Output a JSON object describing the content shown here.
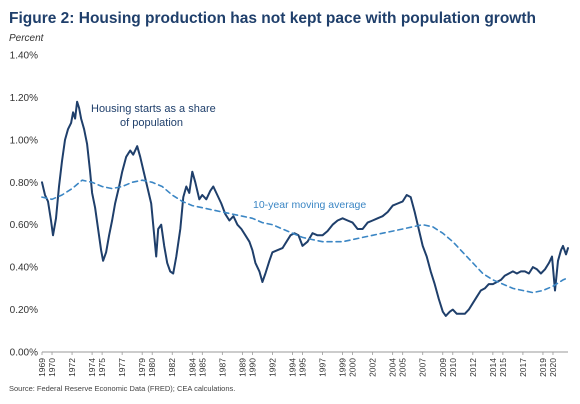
{
  "header": {
    "title": "Figure 2: Housing production has not kept pace with population growth",
    "subtitle": "Percent"
  },
  "footer": {
    "source": "Source: Federal Reserve Economic Data (FRED); CEA calculations."
  },
  "colors": {
    "series_main": "#1f3f6b",
    "series_avg": "#3b86c4",
    "axis": "#999999"
  },
  "chart_data": {
    "type": "line",
    "title": "Figure 2: Housing production has not kept pace with population growth",
    "ylabel": "Percent",
    "xlabel": "",
    "ylim": [
      0,
      1.4
    ],
    "xlim": [
      1969,
      2021.5
    ],
    "grid": false,
    "y_ticks": [
      "0.00%",
      "0.20%",
      "0.40%",
      "0.60%",
      "0.80%",
      "1.00%",
      "1.20%",
      "1.40%"
    ],
    "x_ticks": [
      "1969",
      "1970",
      "1972",
      "1974",
      "1975",
      "1977",
      "1979",
      "1980",
      "1982",
      "1984",
      "1985",
      "1987",
      "1989",
      "1990",
      "1992",
      "1994",
      "1995",
      "1997",
      "1999",
      "2000",
      "2002",
      "2004",
      "2005",
      "2007",
      "2009",
      "2010",
      "2012",
      "2014",
      "2015",
      "2017",
      "2019",
      "2020"
    ],
    "annotations": [
      {
        "text_lines": [
          "Housing starts as a share",
          "of population"
        ],
        "series": "starts"
      },
      {
        "text_lines": [
          "10-year moving average"
        ],
        "series": "avg"
      }
    ],
    "series": [
      {
        "id": "starts",
        "style": "solid",
        "points": [
          [
            1969.0,
            0.8
          ],
          [
            1969.3,
            0.74
          ],
          [
            1969.6,
            0.71
          ],
          [
            1969.9,
            0.62
          ],
          [
            1970.1,
            0.55
          ],
          [
            1970.4,
            0.63
          ],
          [
            1970.7,
            0.78
          ],
          [
            1971.0,
            0.9
          ],
          [
            1971.3,
            1.0
          ],
          [
            1971.6,
            1.05
          ],
          [
            1971.9,
            1.08
          ],
          [
            1972.1,
            1.13
          ],
          [
            1972.3,
            1.1
          ],
          [
            1972.5,
            1.18
          ],
          [
            1972.7,
            1.15
          ],
          [
            1972.9,
            1.1
          ],
          [
            1973.2,
            1.05
          ],
          [
            1973.5,
            0.98
          ],
          [
            1973.8,
            0.85
          ],
          [
            1974.0,
            0.75
          ],
          [
            1974.3,
            0.68
          ],
          [
            1974.6,
            0.58
          ],
          [
            1974.9,
            0.48
          ],
          [
            1975.1,
            0.43
          ],
          [
            1975.4,
            0.47
          ],
          [
            1975.7,
            0.55
          ],
          [
            1976.0,
            0.62
          ],
          [
            1976.3,
            0.7
          ],
          [
            1976.7,
            0.78
          ],
          [
            1977.0,
            0.85
          ],
          [
            1977.4,
            0.92
          ],
          [
            1977.8,
            0.95
          ],
          [
            1978.1,
            0.93
          ],
          [
            1978.5,
            0.97
          ],
          [
            1978.8,
            0.92
          ],
          [
            1979.1,
            0.86
          ],
          [
            1979.5,
            0.78
          ],
          [
            1979.9,
            0.7
          ],
          [
            1980.2,
            0.55
          ],
          [
            1980.4,
            0.45
          ],
          [
            1980.6,
            0.58
          ],
          [
            1980.9,
            0.6
          ],
          [
            1981.2,
            0.5
          ],
          [
            1981.5,
            0.42
          ],
          [
            1981.8,
            0.38
          ],
          [
            1982.1,
            0.37
          ],
          [
            1982.4,
            0.45
          ],
          [
            1982.8,
            0.58
          ],
          [
            1983.1,
            0.73
          ],
          [
            1983.4,
            0.78
          ],
          [
            1983.7,
            0.75
          ],
          [
            1984.0,
            0.85
          ],
          [
            1984.3,
            0.8
          ],
          [
            1984.7,
            0.72
          ],
          [
            1985.0,
            0.74
          ],
          [
            1985.4,
            0.72
          ],
          [
            1985.8,
            0.76
          ],
          [
            1986.1,
            0.78
          ],
          [
            1986.5,
            0.74
          ],
          [
            1986.9,
            0.7
          ],
          [
            1987.3,
            0.65
          ],
          [
            1987.7,
            0.62
          ],
          [
            1988.1,
            0.64
          ],
          [
            1988.5,
            0.6
          ],
          [
            1988.9,
            0.58
          ],
          [
            1989.3,
            0.55
          ],
          [
            1989.7,
            0.52
          ],
          [
            1990.0,
            0.48
          ],
          [
            1990.3,
            0.42
          ],
          [
            1990.7,
            0.38
          ],
          [
            1991.0,
            0.33
          ],
          [
            1991.3,
            0.37
          ],
          [
            1991.7,
            0.43
          ],
          [
            1992.0,
            0.47
          ],
          [
            1992.5,
            0.48
          ],
          [
            1993.0,
            0.49
          ],
          [
            1993.4,
            0.52
          ],
          [
            1993.8,
            0.55
          ],
          [
            1994.2,
            0.56
          ],
          [
            1994.6,
            0.55
          ],
          [
            1995.0,
            0.5
          ],
          [
            1995.5,
            0.52
          ],
          [
            1996.0,
            0.56
          ],
          [
            1996.5,
            0.55
          ],
          [
            1997.0,
            0.55
          ],
          [
            1997.5,
            0.57
          ],
          [
            1998.0,
            0.6
          ],
          [
            1998.5,
            0.62
          ],
          [
            1999.0,
            0.63
          ],
          [
            1999.5,
            0.62
          ],
          [
            2000.0,
            0.61
          ],
          [
            2000.5,
            0.58
          ],
          [
            2001.0,
            0.58
          ],
          [
            2001.5,
            0.61
          ],
          [
            2002.0,
            0.62
          ],
          [
            2002.5,
            0.63
          ],
          [
            2003.0,
            0.64
          ],
          [
            2003.5,
            0.66
          ],
          [
            2004.0,
            0.69
          ],
          [
            2004.5,
            0.7
          ],
          [
            2005.0,
            0.71
          ],
          [
            2005.4,
            0.74
          ],
          [
            2005.8,
            0.73
          ],
          [
            2006.2,
            0.66
          ],
          [
            2006.6,
            0.58
          ],
          [
            2007.0,
            0.5
          ],
          [
            2007.4,
            0.45
          ],
          [
            2007.8,
            0.38
          ],
          [
            2008.2,
            0.32
          ],
          [
            2008.6,
            0.25
          ],
          [
            2009.0,
            0.19
          ],
          [
            2009.3,
            0.17
          ],
          [
            2009.7,
            0.19
          ],
          [
            2010.0,
            0.2
          ],
          [
            2010.4,
            0.18
          ],
          [
            2010.8,
            0.18
          ],
          [
            2011.2,
            0.18
          ],
          [
            2011.6,
            0.2
          ],
          [
            2012.0,
            0.23
          ],
          [
            2012.4,
            0.26
          ],
          [
            2012.8,
            0.29
          ],
          [
            2013.2,
            0.3
          ],
          [
            2013.6,
            0.32
          ],
          [
            2014.0,
            0.32
          ],
          [
            2014.4,
            0.33
          ],
          [
            2014.8,
            0.34
          ],
          [
            2015.2,
            0.36
          ],
          [
            2015.6,
            0.37
          ],
          [
            2016.0,
            0.38
          ],
          [
            2016.4,
            0.37
          ],
          [
            2016.8,
            0.38
          ],
          [
            2017.2,
            0.38
          ],
          [
            2017.6,
            0.37
          ],
          [
            2018.0,
            0.4
          ],
          [
            2018.4,
            0.39
          ],
          [
            2018.8,
            0.37
          ],
          [
            2019.2,
            0.39
          ],
          [
            2019.6,
            0.42
          ],
          [
            2019.9,
            0.45
          ],
          [
            2020.2,
            0.29
          ],
          [
            2020.5,
            0.43
          ],
          [
            2020.8,
            0.48
          ],
          [
            2021.0,
            0.5
          ],
          [
            2021.3,
            0.46
          ],
          [
            2021.5,
            0.49
          ]
        ]
      },
      {
        "id": "avg",
        "style": "dashed",
        "points": [
          [
            1969.0,
            0.73
          ],
          [
            1970.0,
            0.72
          ],
          [
            1971.0,
            0.74
          ],
          [
            1972.0,
            0.77
          ],
          [
            1973.0,
            0.81
          ],
          [
            1974.0,
            0.8
          ],
          [
            1975.0,
            0.78
          ],
          [
            1976.0,
            0.77
          ],
          [
            1977.0,
            0.78
          ],
          [
            1978.0,
            0.8
          ],
          [
            1979.0,
            0.81
          ],
          [
            1980.0,
            0.8
          ],
          [
            1981.0,
            0.78
          ],
          [
            1982.0,
            0.74
          ],
          [
            1983.0,
            0.71
          ],
          [
            1984.0,
            0.69
          ],
          [
            1985.0,
            0.68
          ],
          [
            1986.0,
            0.67
          ],
          [
            1987.0,
            0.66
          ],
          [
            1988.0,
            0.65
          ],
          [
            1989.0,
            0.64
          ],
          [
            1990.0,
            0.63
          ],
          [
            1991.0,
            0.61
          ],
          [
            1992.0,
            0.6
          ],
          [
            1993.0,
            0.58
          ],
          [
            1994.0,
            0.56
          ],
          [
            1995.0,
            0.54
          ],
          [
            1996.0,
            0.53
          ],
          [
            1997.0,
            0.52
          ],
          [
            1998.0,
            0.52
          ],
          [
            1999.0,
            0.52
          ],
          [
            2000.0,
            0.53
          ],
          [
            2001.0,
            0.54
          ],
          [
            2002.0,
            0.55
          ],
          [
            2003.0,
            0.56
          ],
          [
            2004.0,
            0.57
          ],
          [
            2005.0,
            0.58
          ],
          [
            2006.0,
            0.59
          ],
          [
            2007.0,
            0.6
          ],
          [
            2008.0,
            0.59
          ],
          [
            2009.0,
            0.56
          ],
          [
            2010.0,
            0.52
          ],
          [
            2011.0,
            0.47
          ],
          [
            2012.0,
            0.42
          ],
          [
            2013.0,
            0.37
          ],
          [
            2014.0,
            0.34
          ],
          [
            2015.0,
            0.32
          ],
          [
            2016.0,
            0.3
          ],
          [
            2017.0,
            0.29
          ],
          [
            2018.0,
            0.28
          ],
          [
            2019.0,
            0.29
          ],
          [
            2020.0,
            0.31
          ],
          [
            2021.0,
            0.34
          ],
          [
            2021.5,
            0.35
          ]
        ]
      }
    ]
  }
}
